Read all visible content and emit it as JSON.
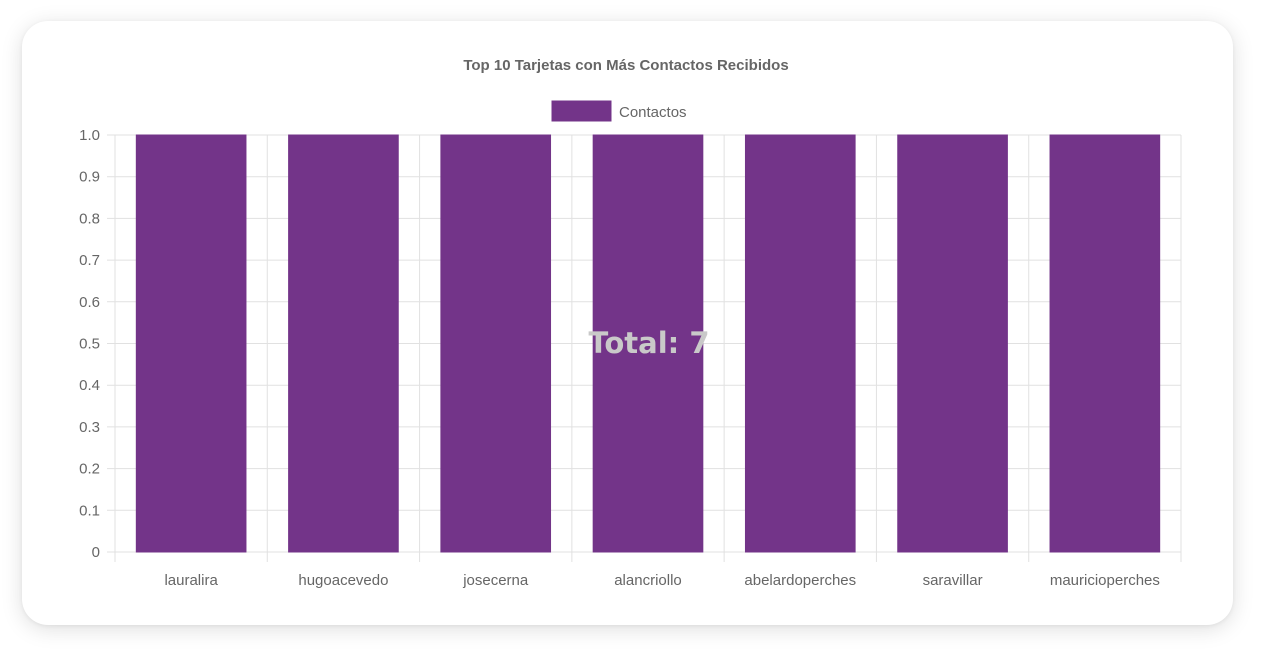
{
  "chart_data": {
    "type": "bar",
    "title": "Top 10 Tarjetas con Más Contactos Recibidos",
    "categories": [
      "lauralira",
      "hugoacevedo",
      "josecerna",
      "alancriollo",
      "abelardoperches",
      "saravillar",
      "mauricioperches"
    ],
    "series": [
      {
        "name": "Contactos",
        "values": [
          1,
          1,
          1,
          1,
          1,
          1,
          1
        ],
        "color": "#733489"
      }
    ],
    "ylim": [
      0,
      1
    ],
    "yticks": [
      "0",
      "0.1",
      "0.2",
      "0.3",
      "0.4",
      "0.5",
      "0.6",
      "0.7",
      "0.8",
      "0.9",
      "1.0"
    ],
    "grid": true,
    "legend_position": "top-center",
    "center_annotation": "Total: 7"
  }
}
